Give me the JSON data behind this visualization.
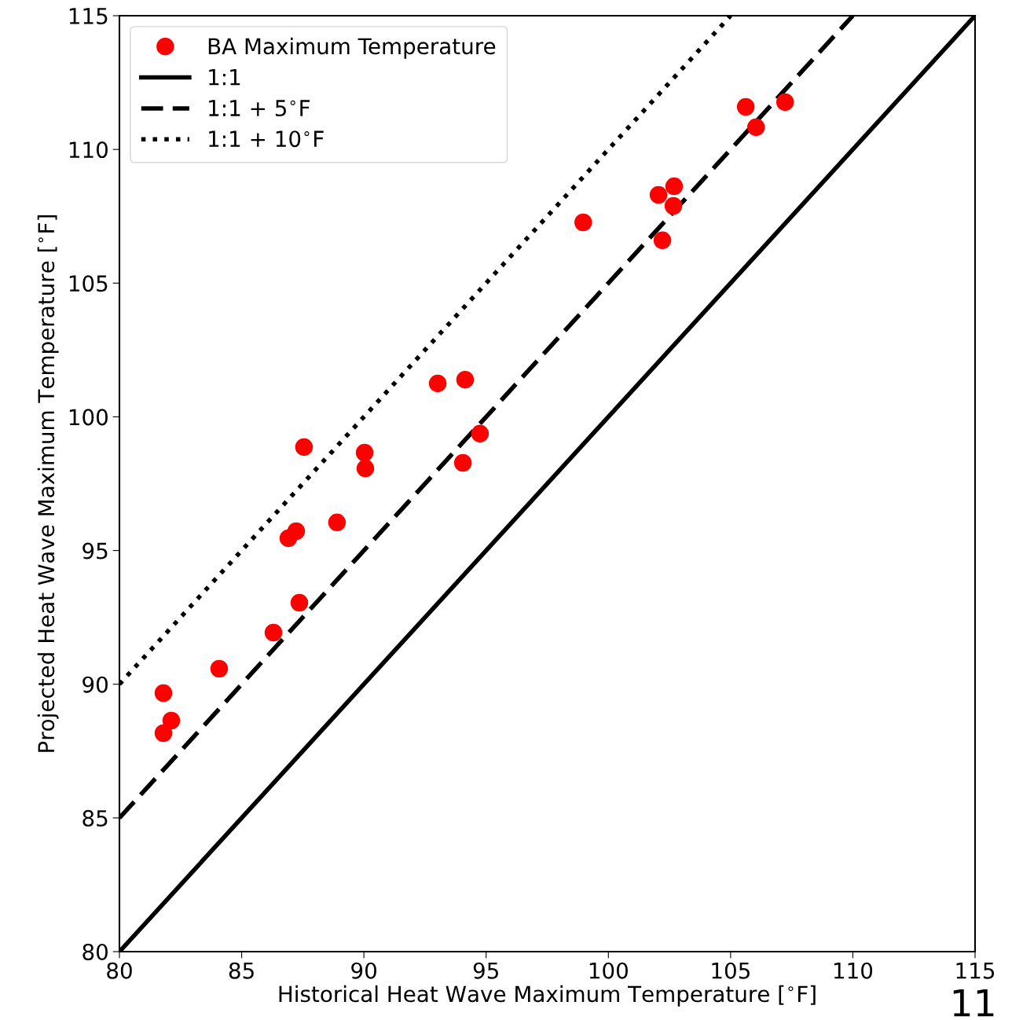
{
  "chart_data": {
    "type": "scatter",
    "xlabel": "Historical Heat Wave Maximum Temperature [$^{∘}$F]",
    "ylabel": "Projected Heat Wave Maximum Temperature [$^{∘}$F]",
    "xlim": [
      80,
      115
    ],
    "ylim": [
      80,
      115
    ],
    "xticks": [
      80,
      85,
      90,
      95,
      100,
      105,
      110,
      115
    ],
    "yticks": [
      80,
      85,
      90,
      95,
      100,
      105,
      110,
      115
    ],
    "grid": false,
    "legend": "top left",
    "marker": "circle",
    "series": [
      {
        "name": "BA Maximum Temperature",
        "color": "#ff0000",
        "x": [
          81.8,
          81.9,
          82.12,
          81.8,
          84.08,
          86.3,
          87.36,
          86.91,
          87.23,
          87.55,
          88.9,
          90.03,
          90.06,
          93.02,
          94.14,
          94.05,
          94.75,
          98.97,
          102.05,
          102.69,
          102.66,
          102.21,
          105.62,
          106.04,
          107.23
        ],
        "values": [
          89.67,
          null,
          88.64,
          88.17,
          90.58,
          91.93,
          93.05,
          95.46,
          95.72,
          98.87,
          96.05,
          98.66,
          98.07,
          101.25,
          101.39,
          98.28,
          99.37,
          107.27,
          108.3,
          108.62,
          107.89,
          106.6,
          111.59,
          110.83,
          111.77
        ]
      },
      {
        "name": "1:1",
        "type": "line",
        "color": "#000000",
        "line_style": "solid",
        "marker": "none",
        "x": [
          80,
          115
        ],
        "values": [
          80,
          115
        ]
      },
      {
        "name": "1:1 + 5$^{∘}$F",
        "type": "line",
        "color": "#000000",
        "line_style": "dashed",
        "marker": "none",
        "x": [
          80,
          110
        ],
        "values": [
          85,
          115
        ]
      },
      {
        "name": "1:1 + 10$^{∘}$F",
        "type": "line",
        "color": "#000000",
        "line_style": "dotted",
        "marker": "none",
        "x": [
          80,
          105
        ],
        "values": [
          90,
          115
        ]
      }
    ],
    "annotations": [
      "11"
    ]
  }
}
